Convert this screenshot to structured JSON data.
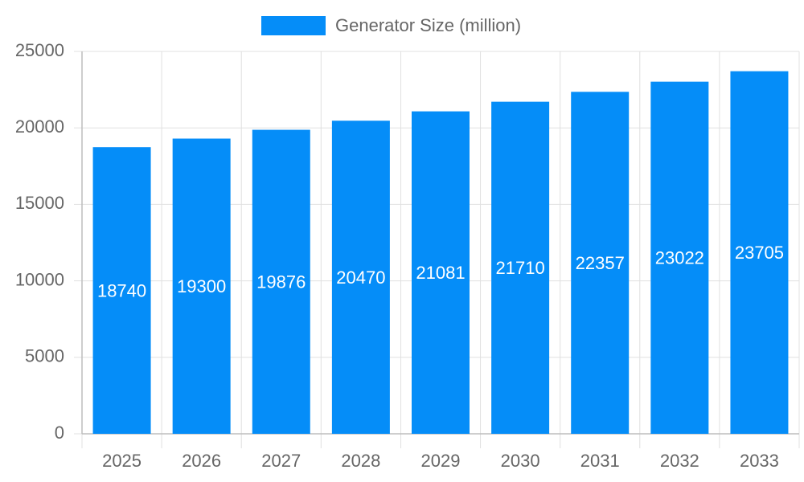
{
  "chart_data": {
    "type": "bar",
    "categories": [
      "2025",
      "2026",
      "2027",
      "2028",
      "2029",
      "2030",
      "2031",
      "2032",
      "2033"
    ],
    "series": [
      {
        "name": "Generator Size (million)",
        "color": "#058DF8",
        "values": [
          18740,
          19300,
          19876,
          20470,
          21081,
          21710,
          22357,
          23022,
          23705
        ]
      }
    ],
    "ylim": [
      0,
      25000
    ],
    "yticks": [
      0,
      5000,
      10000,
      15000,
      20000,
      25000
    ],
    "grid": true,
    "legend": "top",
    "data_labels": true
  }
}
